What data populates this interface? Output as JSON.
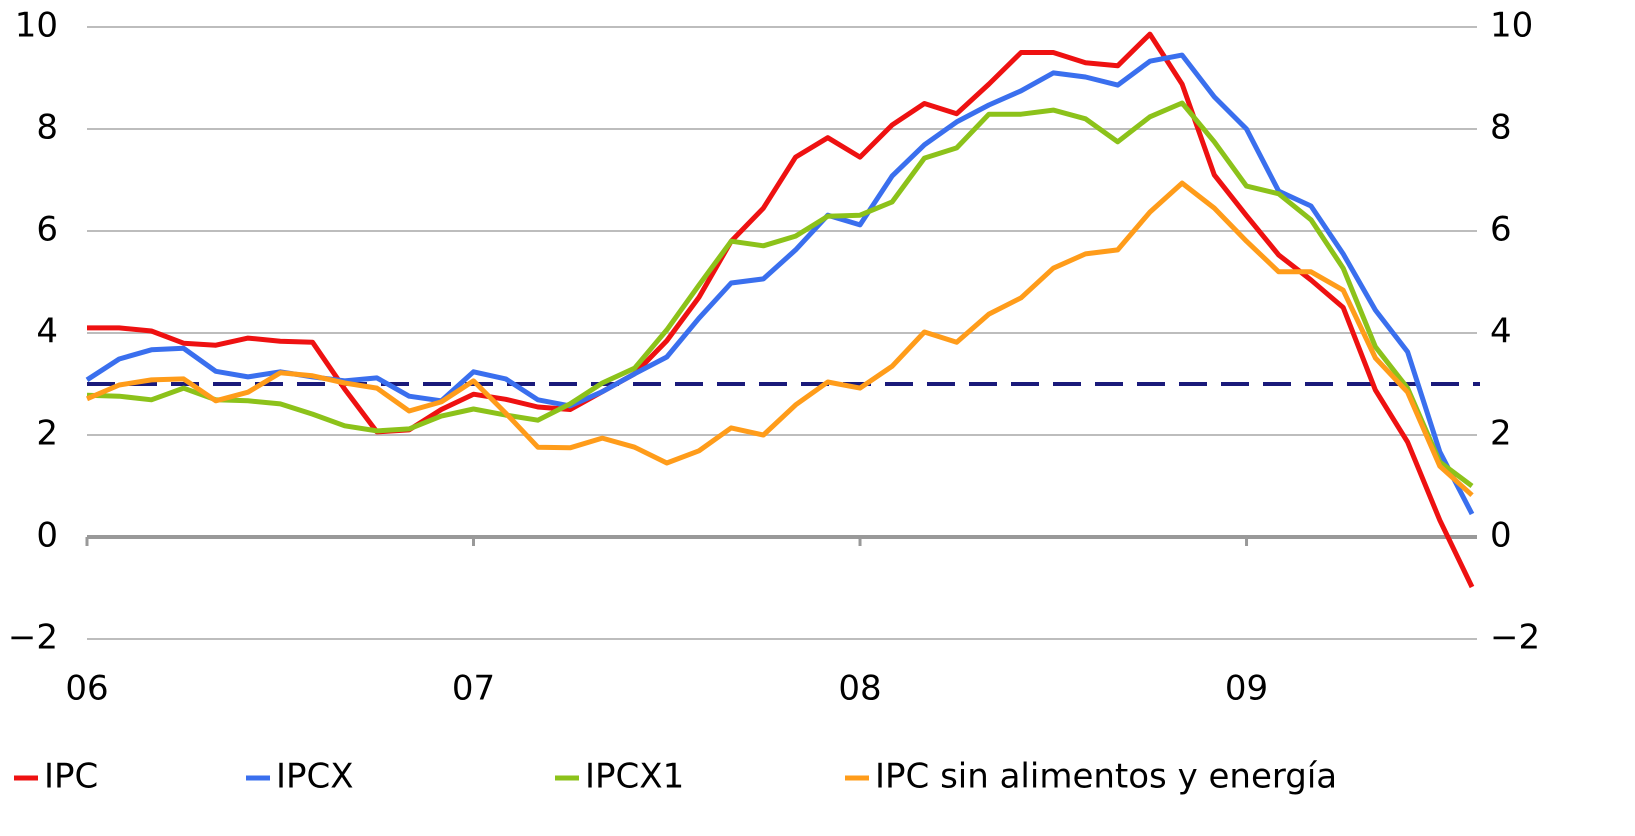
{
  "chart_data": {
    "type": "line",
    "xlim": [
      0,
      43
    ],
    "xticks": [
      {
        "value": 0,
        "label": "06"
      },
      {
        "value": 12,
        "label": "07"
      },
      {
        "value": 24,
        "label": "08"
      },
      {
        "value": 36,
        "label": "09"
      }
    ],
    "ylim": [
      -2,
      10
    ],
    "yticks": [
      {
        "value": -2,
        "label": "−2"
      },
      0,
      2,
      4,
      6,
      8,
      10
    ],
    "y2lim": [
      -2,
      10
    ],
    "y2ticks": [
      {
        "value": -2,
        "label": "−2"
      },
      0,
      2,
      4,
      6,
      8,
      10
    ],
    "grid": true,
    "reference_line": {
      "value": 3,
      "color": "#1a1a7a"
    },
    "legend": "bottom",
    "x": [
      0,
      1,
      2,
      3,
      4,
      5,
      6,
      7,
      8,
      9,
      10,
      11,
      12,
      13,
      14,
      15,
      16,
      17,
      18,
      19,
      20,
      21,
      22,
      23,
      24,
      25,
      26,
      27,
      28,
      29,
      30,
      31,
      32,
      33,
      34,
      35,
      36,
      37,
      38,
      39,
      40,
      41,
      42,
      43
    ],
    "series": [
      {
        "name": "IPC",
        "color": "#ee1111",
        "values": [
          4.1,
          4.1,
          4.04,
          3.8,
          3.76,
          3.9,
          3.84,
          3.82,
          2.9,
          2.06,
          2.1,
          2.5,
          2.8,
          2.7,
          2.55,
          2.5,
          2.85,
          3.2,
          3.85,
          4.7,
          5.8,
          6.45,
          7.45,
          7.83,
          7.45,
          8.08,
          8.5,
          8.3,
          8.88,
          9.5,
          9.5,
          9.3,
          9.24,
          9.86,
          8.88,
          7.1,
          6.3,
          5.53,
          5.04,
          4.5,
          2.88,
          1.86,
          0.33,
          -0.98
        ]
      },
      {
        "name": "IPCX",
        "color": "#3a6fee",
        "values": [
          3.08,
          3.49,
          3.67,
          3.7,
          3.25,
          3.14,
          3.24,
          3.14,
          3.06,
          3.12,
          2.76,
          2.67,
          3.24,
          3.1,
          2.69,
          2.57,
          2.85,
          3.2,
          3.53,
          4.29,
          4.98,
          5.06,
          5.63,
          6.31,
          6.12,
          7.08,
          7.69,
          8.14,
          8.47,
          8.75,
          9.1,
          9.02,
          8.86,
          9.33,
          9.45,
          8.63,
          8.0,
          6.78,
          6.49,
          5.55,
          4.45,
          3.63,
          1.67,
          0.45
        ]
      },
      {
        "name": "IPCX1",
        "color": "#8cc21a",
        "values": [
          2.78,
          2.76,
          2.69,
          2.92,
          2.69,
          2.67,
          2.61,
          2.41,
          2.18,
          2.08,
          2.12,
          2.37,
          2.51,
          2.39,
          2.29,
          2.61,
          3.02,
          3.31,
          4.06,
          4.94,
          5.8,
          5.71,
          5.9,
          6.29,
          6.31,
          6.57,
          7.43,
          7.63,
          8.29,
          8.29,
          8.37,
          8.2,
          7.75,
          8.24,
          8.51,
          7.75,
          6.88,
          6.73,
          6.22,
          5.27,
          3.73,
          2.92,
          1.47,
          1.0
        ]
      },
      {
        "name": "IPC sin alimentos y energía",
        "color": "#ff9c1a",
        "values": [
          2.71,
          2.98,
          3.08,
          3.1,
          2.67,
          2.84,
          3.22,
          3.16,
          3.02,
          2.92,
          2.47,
          2.65,
          3.06,
          2.43,
          1.76,
          1.75,
          1.94,
          1.76,
          1.45,
          1.69,
          2.14,
          2.0,
          2.59,
          3.04,
          2.92,
          3.35,
          4.02,
          3.82,
          4.37,
          4.69,
          5.27,
          5.55,
          5.63,
          6.37,
          6.94,
          6.45,
          5.8,
          5.2,
          5.2,
          4.84,
          3.51,
          2.84,
          1.39,
          0.82
        ]
      }
    ]
  }
}
